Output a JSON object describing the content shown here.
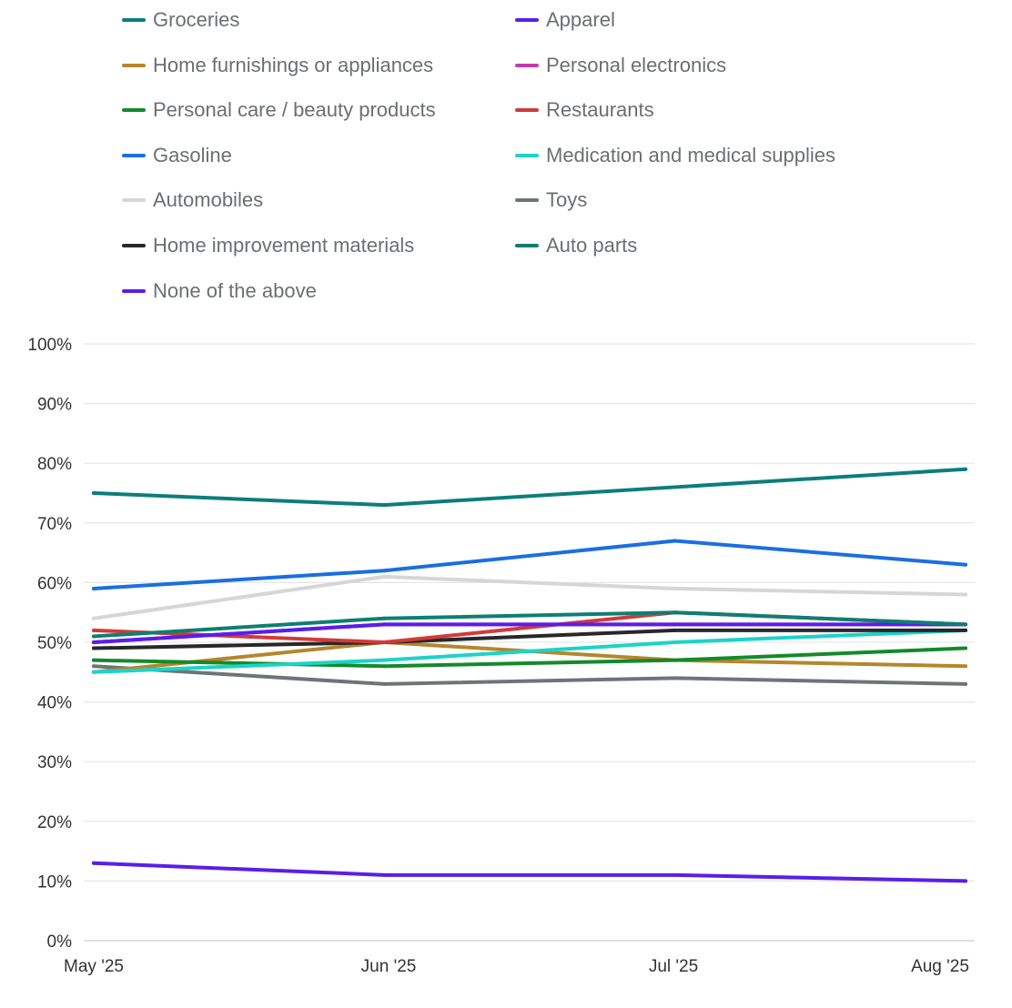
{
  "chart_data": {
    "type": "line",
    "categories": [
      "May '25",
      "Jun '25",
      "Jul '25",
      "Aug '25"
    ],
    "ylim": [
      0,
      100
    ],
    "y_ticks": [
      "0%",
      "10%",
      "20%",
      "30%",
      "40%",
      "50%",
      "60%",
      "70%",
      "80%",
      "90%",
      "100%"
    ],
    "grid": true,
    "legend_position": "top",
    "series": [
      {
        "name": "Groceries",
        "color": "#0b7e7b",
        "values": [
          75,
          73,
          76,
          79
        ]
      },
      {
        "name": "Apparel",
        "color": "#5a1ee8",
        "values": [
          50,
          53,
          53,
          53
        ]
      },
      {
        "name": "Home furnishings or appliances",
        "color": "#b5862b",
        "values": [
          45,
          50,
          47,
          46
        ]
      },
      {
        "name": "Personal electronics",
        "color": "#c73bb0",
        "values": [
          50,
          53,
          53,
          53
        ]
      },
      {
        "name": "Personal care / beauty products",
        "color": "#138a2a",
        "values": [
          47,
          46,
          47,
          49
        ]
      },
      {
        "name": "Restaurants",
        "color": "#d33a3a",
        "values": [
          52,
          50,
          55,
          53
        ]
      },
      {
        "name": "Gasoline",
        "color": "#1a6fe0",
        "values": [
          59,
          62,
          67,
          63
        ]
      },
      {
        "name": "Medication and medical supplies",
        "color": "#1cd3c9",
        "values": [
          45,
          47,
          50,
          52
        ]
      },
      {
        "name": "Automobiles",
        "color": "#d6d6d6",
        "values": [
          54,
          61,
          59,
          58
        ]
      },
      {
        "name": "Toys",
        "color": "#6e7478",
        "values": [
          46,
          43,
          44,
          43
        ]
      },
      {
        "name": "Home improvement materials",
        "color": "#26282b",
        "values": [
          49,
          50,
          52,
          52
        ]
      },
      {
        "name": "Auto parts",
        "color": "#0d7f72",
        "values": [
          51,
          54,
          55,
          53
        ]
      },
      {
        "name": "None of the above",
        "color": "#5a1ee8",
        "values": [
          13,
          11,
          11,
          10
        ]
      }
    ]
  }
}
